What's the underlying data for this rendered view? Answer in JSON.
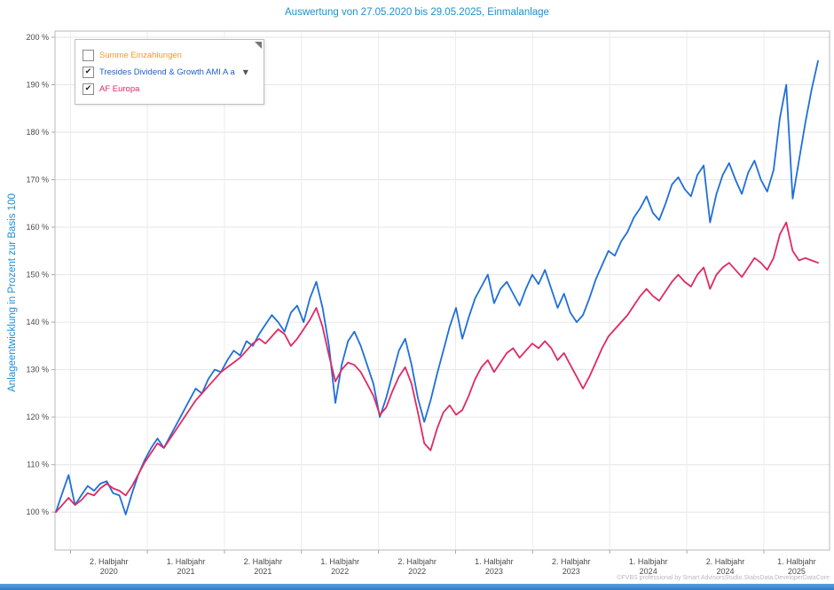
{
  "header": {
    "title": "Auswertung von 27.05.2020 bis 29.05.2025, Einmalanlage"
  },
  "y_axis": {
    "label": "Anlageentwicklung  in Prozent zur Basis 100"
  },
  "legend": {
    "items": [
      {
        "label": "Summe Einzahlungen",
        "color": "#f59b22",
        "checked": false,
        "has_dropdown": false
      },
      {
        "label": "Tresides Dividend & Growth AMI A a",
        "color": "#1f5fc8",
        "checked": true,
        "has_dropdown": true
      },
      {
        "label": "AF Europa",
        "color": "#e02963",
        "checked": true,
        "has_dropdown": false
      }
    ]
  },
  "watermark": "©FVBS professional by Smart AdvisorsStudio.StabsData.DeveloperDataCore",
  "chart_data": {
    "type": "line",
    "title": "Auswertung von 27.05.2020 bis 29.05.2025, Einmalanlage",
    "ylabel": "Anlageentwicklung  in Prozent zur Basis 100",
    "xlabel": "",
    "grid": true,
    "legend_position": "top-left",
    "x_unit": "months since 27.05.2020",
    "x_range": [
      0,
      60
    ],
    "ylim": [
      92,
      201.3
    ],
    "y_ticks": [
      100,
      110,
      120,
      130,
      140,
      150,
      160,
      170,
      180,
      190,
      200
    ],
    "y_tick_suffix": " %",
    "x_boundaries_months": [
      1.15,
      7.2,
      13.27,
      19.33,
      25.4,
      31.47,
      37.53,
      43.6,
      49.67,
      55.73
    ],
    "x_tick_labels": [
      {
        "top": "2. Halbjahr",
        "bottom": "2020"
      },
      {
        "top": "1. Halbjahr",
        "bottom": "2021"
      },
      {
        "top": "2. Halbjahr",
        "bottom": "2021"
      },
      {
        "top": "1. Halbjahr",
        "bottom": "2022"
      },
      {
        "top": "2. Halbjahr",
        "bottom": "2022"
      },
      {
        "top": "1. Halbjahr",
        "bottom": "2023"
      },
      {
        "top": "2. Halbjahr",
        "bottom": "2023"
      },
      {
        "top": "1. Halbjahr",
        "bottom": "2024"
      },
      {
        "top": "2. Halbjahr",
        "bottom": "2024"
      },
      {
        "top": "1. Halbjahr",
        "bottom": "2025"
      }
    ],
    "series": [
      {
        "name": "Tresides Dividend & Growth AMI A a",
        "color": "#1f6fd8",
        "visible": true,
        "values": [
          100,
          104,
          107.8,
          101.5,
          103.5,
          105.5,
          104.5,
          106,
          106.5,
          104,
          103.5,
          99.5,
          104,
          108,
          111,
          113.5,
          115.5,
          113.5,
          116,
          118.5,
          121,
          123.5,
          126,
          125,
          128,
          130,
          129.5,
          132,
          134,
          133,
          136,
          135,
          137.5,
          139.5,
          141.5,
          140,
          138,
          142,
          143.5,
          140,
          145,
          148.5,
          143,
          135,
          123,
          131,
          136,
          138,
          135,
          131,
          127,
          120,
          124,
          129,
          134,
          136.5,
          131,
          124,
          119,
          123.5,
          129,
          134,
          139,
          143,
          136.5,
          141,
          145,
          147.5,
          150,
          144,
          147,
          148.5,
          146,
          143.5,
          147,
          150,
          148,
          151,
          147,
          143,
          146,
          142,
          140,
          141.5,
          145,
          149,
          152,
          155,
          154,
          157,
          159,
          162,
          164,
          166.5,
          163,
          161.5,
          165,
          169,
          170.5,
          168,
          166.5,
          171,
          173,
          161,
          167,
          171,
          173.5,
          170,
          167,
          171.5,
          174,
          170,
          167.5,
          172,
          183,
          190,
          166,
          174,
          182,
          189,
          195
        ]
      },
      {
        "name": "AF Europa",
        "color": "#e02963",
        "visible": true,
        "values": [
          100,
          101.5,
          103,
          101.5,
          102.5,
          104,
          103.5,
          105,
          106,
          105,
          104.5,
          103.5,
          105.5,
          108,
          110.5,
          112.5,
          114.5,
          113.5,
          115.5,
          117.5,
          119.5,
          121.5,
          123.5,
          125,
          126.5,
          128,
          129.5,
          130.5,
          131.5,
          132.5,
          134,
          135.5,
          136.5,
          135.5,
          137,
          138.5,
          137.5,
          135,
          136.5,
          138.5,
          140.5,
          143,
          139,
          133,
          127.5,
          130,
          131.5,
          131,
          129.5,
          127,
          124.5,
          120.5,
          122,
          125.5,
          128.5,
          130.5,
          127,
          121,
          114.5,
          113,
          117.5,
          121,
          122.5,
          120.5,
          121.5,
          124.5,
          128,
          130.5,
          132,
          129.5,
          131.5,
          133.5,
          134.5,
          132.5,
          134,
          135.5,
          134.5,
          136,
          134.5,
          132,
          133.5,
          131,
          128.5,
          126,
          128.5,
          131.5,
          134.5,
          137,
          138.5,
          140,
          141.5,
          143.5,
          145.5,
          147,
          145.5,
          144.5,
          146.5,
          148.5,
          150,
          148.5,
          147.5,
          150,
          151.5,
          147,
          150,
          151.5,
          152.5,
          151,
          149.5,
          151.5,
          153.5,
          152.5,
          151,
          153.5,
          158.5,
          161,
          155,
          153,
          153.5,
          153,
          152.5
        ]
      },
      {
        "name": "Summe Einzahlungen",
        "color": "#f59b22",
        "visible": false,
        "values": []
      }
    ]
  }
}
